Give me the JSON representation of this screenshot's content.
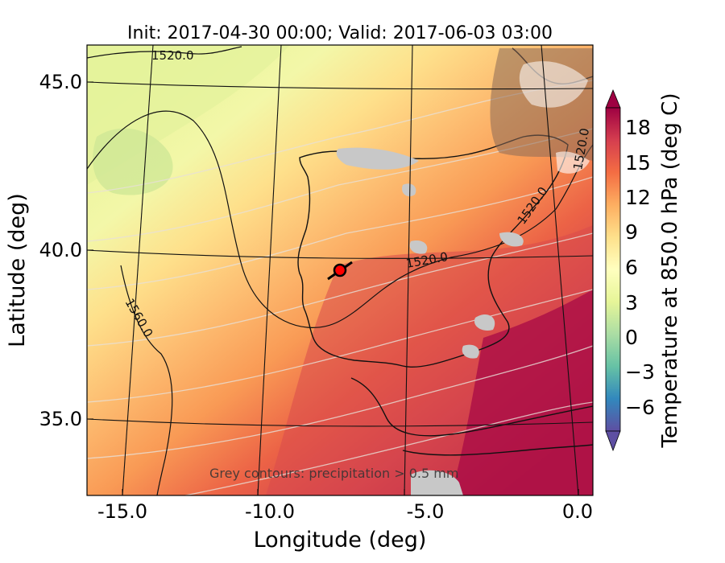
{
  "title": "Init: 2017-04-30 00:00; Valid: 2017-06-03 03:00",
  "x_axis": {
    "label": "Longitude (deg)",
    "ticks": [
      "-15.0",
      "-10.0",
      "-5.0",
      "0.0"
    ],
    "range": [
      -16.0,
      0.5
    ]
  },
  "y_axis": {
    "label": "Latitude (deg)",
    "ticks": [
      "45.0",
      "40.0",
      "35.0"
    ],
    "range": [
      32.5,
      46.2
    ]
  },
  "colorbar": {
    "label": "Temperature at 850.0 hPa (deg C)",
    "ticks": [
      "18",
      "15",
      "12",
      "9",
      "6",
      "3",
      "0",
      "−3",
      "−6"
    ],
    "range": [
      -8,
      20
    ],
    "extend": "both",
    "colormap": "Spectral_r",
    "colors_top_to_bottom": [
      "#9e0142",
      "#d53e4f",
      "#f46d43",
      "#fdae61",
      "#fee08b",
      "#ffffbf",
      "#e6f598",
      "#abdda4",
      "#66c2a5",
      "#3288bd",
      "#5e4fa2"
    ]
  },
  "contour_labels": [
    "1520.0",
    "1520.0",
    "1520.0",
    "1520.0",
    "1560.0"
  ],
  "annotation": "Grey contours: precipitation > 0.5 mm",
  "marker": {
    "lon": -7.6,
    "lat": 39.3,
    "color": "#ff0000"
  },
  "grid": true
}
